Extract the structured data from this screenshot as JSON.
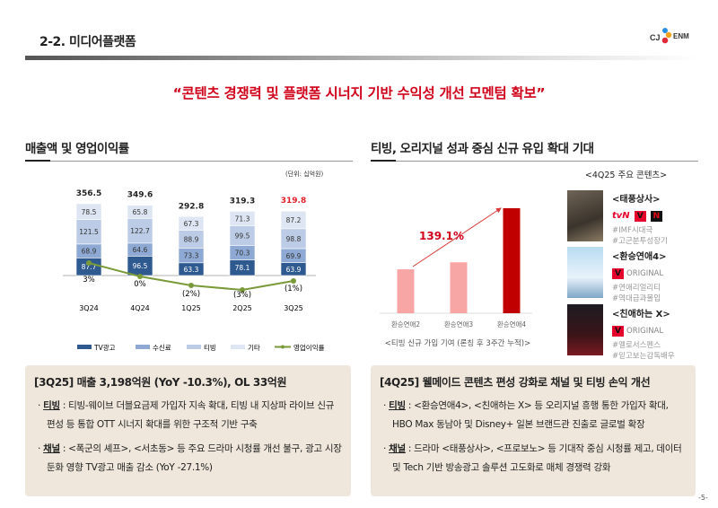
{
  "header": {
    "title": "2-2. 미디어플랫폼",
    "logo": "CJ ENM"
  },
  "headline": "“콘텐츠 경쟁력 및 플랫폼 시너지 기반 수익성 개선 모멘텀 확보”",
  "left": {
    "section_title": "매출액 및 영업이익률",
    "unit": "(단위: 십억원)"
  },
  "right": {
    "section_title": "티빙, 오리지널 성과 중심 신규 유입 확대 기대",
    "chart_caption": "<티빙 신규 가입 기여 (론칭 후 3주간 누적)>",
    "growth_label": "139.1%",
    "contents_title": "<4Q25 주요 콘텐츠>",
    "contents": [
      {
        "title": "<태풍상사>",
        "badges": [
          "tvN",
          "TVING",
          "NETFLIX"
        ],
        "tags": [
          "#IMF시대극",
          "#고군분투성장기"
        ]
      },
      {
        "title": "<환승연애4>",
        "badges": [
          "TVING"
        ],
        "badge_text": "ORIGINAL",
        "tags": [
          "#연애리얼리티",
          "#역대급과몰입"
        ]
      },
      {
        "title": "<친애하는 X>",
        "badges": [
          "TVING"
        ],
        "badge_text": "ORIGINAL",
        "tags": [
          "#멜로서스펜스",
          "#믿고보는감독배우"
        ]
      }
    ]
  },
  "chart_data": [
    {
      "type": "bar",
      "stacked": true,
      "categories": [
        "3Q24",
        "4Q24",
        "1Q25",
        "2Q25",
        "3Q25"
      ],
      "series": [
        {
          "name": "TV광고",
          "values": [
            87.7,
            96.5,
            63.3,
            78.1,
            63.9
          ],
          "color": "#2f5a8f"
        },
        {
          "name": "수신료",
          "values": [
            68.9,
            64.6,
            73.3,
            70.3,
            69.9
          ],
          "color": "#8eaad4"
        },
        {
          "name": "티빙",
          "values": [
            121.5,
            122.7,
            88.9,
            99.5,
            98.8
          ],
          "color": "#bccce6"
        },
        {
          "name": "기타",
          "values": [
            78.5,
            65.8,
            67.3,
            71.3,
            87.2
          ],
          "color": "#dde6f2"
        }
      ],
      "totals": [
        356.5,
        349.6,
        292.8,
        319.3,
        319.8
      ],
      "highlight_total_color": "#e0202a",
      "line": {
        "name": "영업이익률",
        "values": [
          3,
          0,
          -2,
          -3,
          -1
        ],
        "labels": [
          "3%",
          "0%",
          "(2%)",
          "(3%)",
          "(1%)"
        ],
        "color": "#7a9a3a"
      },
      "legend": "bottom"
    },
    {
      "type": "bar",
      "categories": [
        "환승연애2",
        "환승연애3",
        "환승연애4"
      ],
      "values": [
        1.0,
        1.16,
        2.391
      ],
      "colors": [
        "#f8a5a5",
        "#f8a5a5",
        "#c00000"
      ],
      "annotation": "139.1%"
    }
  ],
  "boxes": [
    {
      "title": "[3Q25]  매출 3,198억원 (YoY -10.3%), OL 33억원",
      "items": [
        {
          "label": "티빙",
          "text": " : 티빙-웨이브 더블요금제 가입자 지속 확대, 티빙 내 지상파 라이브 신규 편성 등 통합 OTT 시너지 확대를 위한 구조적 기반 구축"
        },
        {
          "label": "채널",
          "text": " : <폭군의 셰프>, <서초동> 등 주요 드라마 시청률 개선 불구, 광고 시장 둔화 영향 TV광고 매출 감소 (YoY -27.1%)"
        }
      ]
    },
    {
      "title": "[4Q25]  웰메이드 콘텐츠 편성 강화로 채널 및 티빙 손익 개선",
      "items": [
        {
          "label": "티빙",
          "text": " : <환승연애4>, <친애하는 X> 등 오리지널 흥행 통한 가입자 확대, HBO Max 동남아 및 Disney+ 일본 브랜드관 진출로 글로벌 확장"
        },
        {
          "label": "채널",
          "text": " : 드라마 <태풍상사>, <프로보노> 등 기대작 중심 시청률 제고, 데이터 및 Tech 기반 방송광고 솔루션 고도화로 매체 경쟁력 강화"
        }
      ]
    }
  ],
  "page_number": "-5-"
}
